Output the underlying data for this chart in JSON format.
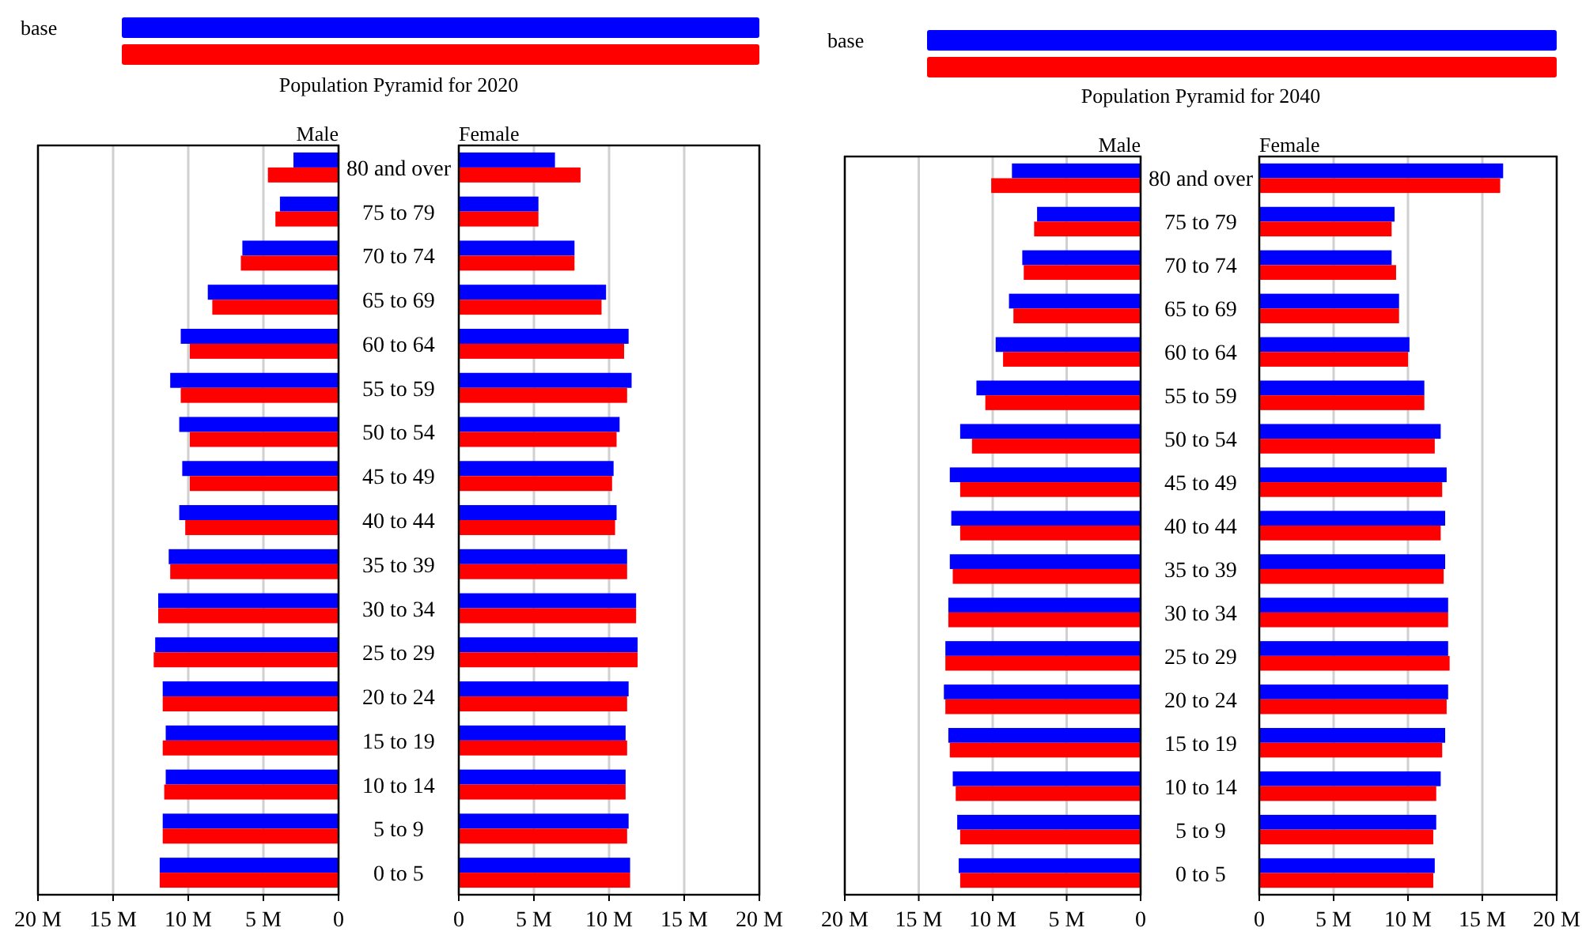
{
  "chart_data": [
    {
      "type": "bar",
      "orientation": "horizontal",
      "title": "Population Pyramid for 2020",
      "subtitle": "Male",
      "legend": "top",
      "grid": "x",
      "tick_labels": "x",
      "categories": [
        null,
        null,
        null,
        null,
        null,
        null,
        null,
        null,
        null,
        null,
        null,
        null,
        null,
        null,
        null,
        null,
        null
      ],
      "xlim": [
        20,
        0
      ],
      "xticks": [
        {
          "value": 20,
          "label": "20 M"
        },
        {
          "value": 15,
          "label": "15 M"
        },
        {
          "value": 10,
          "label": "10 M"
        },
        {
          "value": 5,
          "label": "5 M"
        },
        {
          "value": 0,
          "label": "0"
        }
      ],
      "series": [
        {
          "name": "base",
          "color": "#0000ff",
          "values": [
            3.0,
            3.9,
            6.4,
            8.7,
            10.5,
            11.2,
            10.6,
            10.4,
            10.6,
            11.3,
            12.0,
            12.2,
            11.7,
            11.5,
            11.5,
            11.7,
            11.9
          ]
        },
        {
          "color": "#ff0000",
          "values": [
            4.7,
            4.2,
            6.5,
            8.4,
            9.9,
            10.5,
            9.9,
            9.9,
            10.2,
            11.2,
            12.0,
            12.3,
            11.7,
            11.7,
            11.6,
            11.7,
            11.9
          ]
        }
      ]
    },
    {
      "type": "bar",
      "orientation": "horizontal",
      "subtitle": "Female",
      "grid": "x",
      "categories": [
        "80 and over",
        "75 to 79",
        "70 to 74",
        "65 to 69",
        "60 to 64",
        "55 to 59",
        "50 to 54",
        "45 to 49",
        "40 to 44",
        "35 to 39",
        "30 to 34",
        "25 to 29",
        "20 to 24",
        "15 to 19",
        "10 to 14",
        "5 to 9",
        "0 to 5"
      ],
      "xlim": [
        0,
        20
      ],
      "xticks": [
        0,
        {
          "value": 5,
          "label": "5 M"
        },
        {
          "value": 10,
          "label": "10 M"
        },
        {
          "value": 15,
          "label": "15 M"
        },
        {
          "value": 20,
          "label": "20 M"
        }
      ],
      "series": [
        {
          "color": "#0000ff",
          "values": [
            6.4,
            5.3,
            7.7,
            9.8,
            11.3,
            11.5,
            10.7,
            10.3,
            10.5,
            11.2,
            11.8,
            11.9,
            11.3,
            11.1,
            11.1,
            11.3,
            11.4
          ]
        },
        {
          "color": "#ff0000",
          "values": [
            8.1,
            5.3,
            7.7,
            9.5,
            11.0,
            11.2,
            10.5,
            10.2,
            10.4,
            11.2,
            11.8,
            11.9,
            11.2,
            11.2,
            11.1,
            11.2,
            11.4
          ]
        }
      ]
    },
    {
      "type": "bar",
      "orientation": "horizontal",
      "title": "Population Pyramid for 2040",
      "subtitle": "Male",
      "legend": "top",
      "grid": "x",
      "tick_labels": "x",
      "categories": [
        null,
        null,
        null,
        null,
        null,
        null,
        null,
        null,
        null,
        null,
        null,
        null,
        null,
        null,
        null,
        null,
        null
      ],
      "xlim": [
        20,
        0
      ],
      "xticks": [
        {
          "value": 20,
          "label": "20 M"
        },
        {
          "value": 15,
          "label": "15 M"
        },
        {
          "value": 10,
          "label": "10 M"
        },
        {
          "value": 5,
          "label": "5 M"
        },
        {
          "value": 0,
          "label": "0"
        }
      ],
      "series": [
        {
          "name": "base",
          "color": "#0000ff",
          "values": [
            8.7,
            7.0,
            8.0,
            8.9,
            9.8,
            11.1,
            12.2,
            12.9,
            12.8,
            12.9,
            13.0,
            13.2,
            13.3,
            13.0,
            12.7,
            12.4,
            12.3
          ]
        },
        {
          "color": "#ff0000",
          "values": [
            10.1,
            7.2,
            7.9,
            8.6,
            9.3,
            10.5,
            11.4,
            12.2,
            12.2,
            12.7,
            13.0,
            13.2,
            13.2,
            12.9,
            12.5,
            12.2,
            12.2
          ]
        }
      ]
    },
    {
      "type": "bar",
      "orientation": "horizontal",
      "subtitle": "Female",
      "grid": "x",
      "categories": [
        "80 and over",
        "75 to 79",
        "70 to 74",
        "65 to 69",
        "60 to 64",
        "55 to 59",
        "50 to 54",
        "45 to 49",
        "40 to 44",
        "35 to 39",
        "30 to 34",
        "25 to 29",
        "20 to 24",
        "15 to 19",
        "10 to 14",
        "5 to 9",
        "0 to 5"
      ],
      "xlim": [
        0,
        20
      ],
      "xticks": [
        0,
        {
          "value": 5,
          "label": "5 M"
        },
        {
          "value": 10,
          "label": "10 M"
        },
        {
          "value": 15,
          "label": "15 M"
        },
        {
          "value": 20,
          "label": "20 M"
        }
      ],
      "series": [
        {
          "color": "#0000ff",
          "values": [
            16.4,
            9.1,
            8.9,
            9.4,
            10.1,
            11.1,
            12.2,
            12.6,
            12.5,
            12.5,
            12.7,
            12.7,
            12.7,
            12.5,
            12.2,
            11.9,
            11.8
          ]
        },
        {
          "color": "#ff0000",
          "values": [
            16.2,
            8.9,
            9.2,
            9.4,
            10.0,
            11.1,
            11.8,
            12.3,
            12.2,
            12.4,
            12.7,
            12.8,
            12.6,
            12.3,
            11.9,
            11.7,
            11.7
          ]
        }
      ]
    }
  ]
}
